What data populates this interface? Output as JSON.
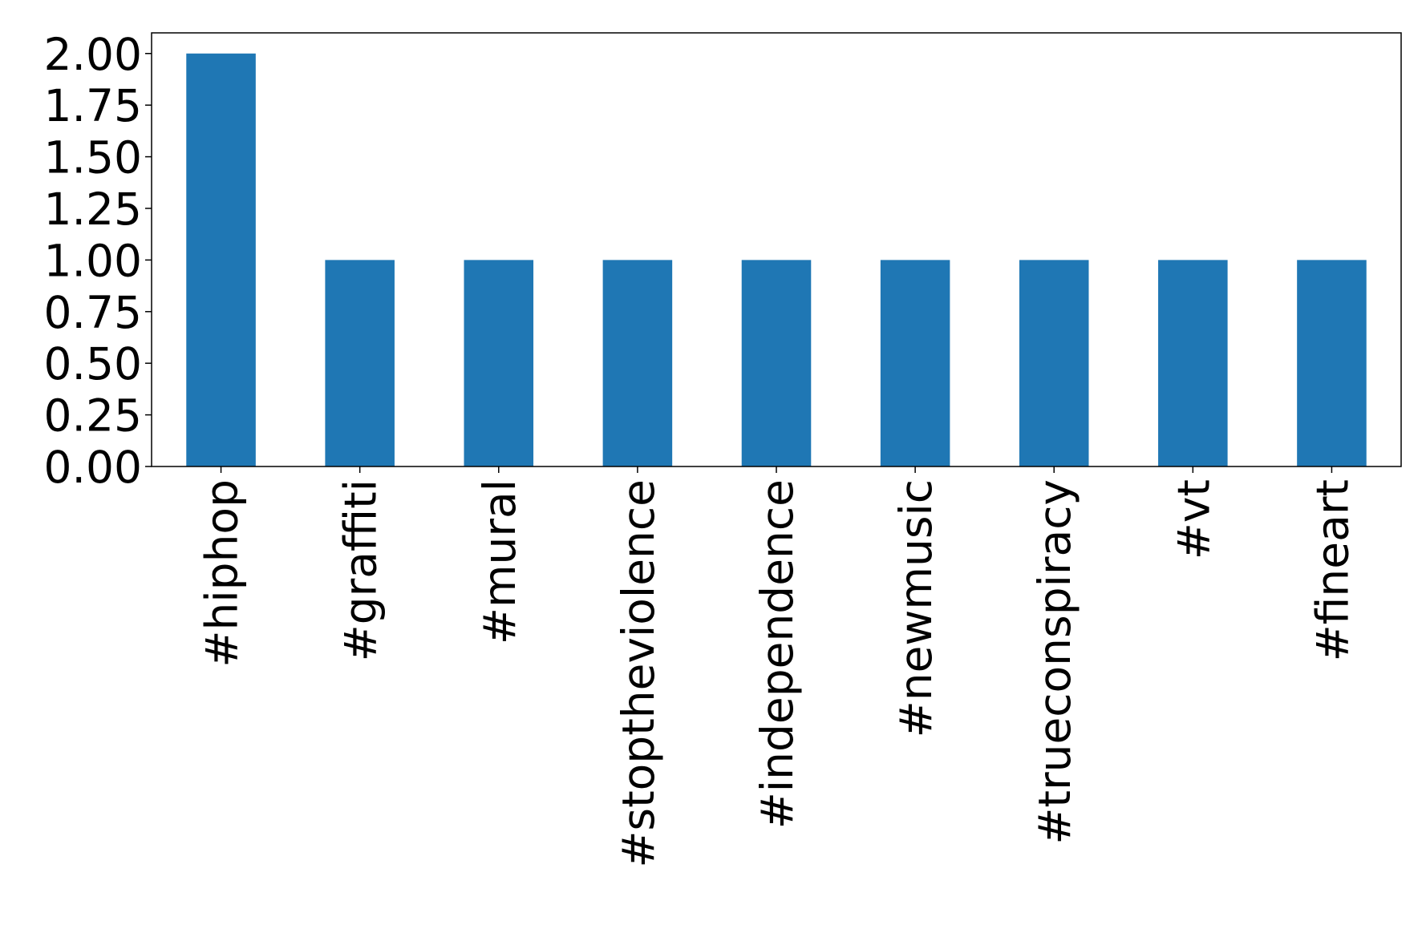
{
  "chart_data": {
    "type": "bar",
    "categories": [
      "#hiphop",
      "#graffiti",
      "#mural",
      "#stoptheviolence",
      "#independence",
      "#newmusic",
      "#trueconspiracy",
      "#vt",
      "#fineart"
    ],
    "values": [
      2,
      1,
      1,
      1,
      1,
      1,
      1,
      1,
      1
    ],
    "color": "#1f77b4",
    "ylim": [
      0,
      2.1
    ],
    "yticks": [
      {
        "value": 0,
        "label": "0.00"
      },
      {
        "value": 0.25,
        "label": "0.25"
      },
      {
        "value": 0.5,
        "label": "0.50"
      },
      {
        "value": 0.75,
        "label": "0.75"
      },
      {
        "value": 1,
        "label": "1.00"
      },
      {
        "value": 1.25,
        "label": "1.25"
      },
      {
        "value": 1.5,
        "label": "1.50"
      },
      {
        "value": 1.75,
        "label": "1.75"
      },
      {
        "value": 2,
        "label": "2.00"
      }
    ],
    "grid": false
  }
}
